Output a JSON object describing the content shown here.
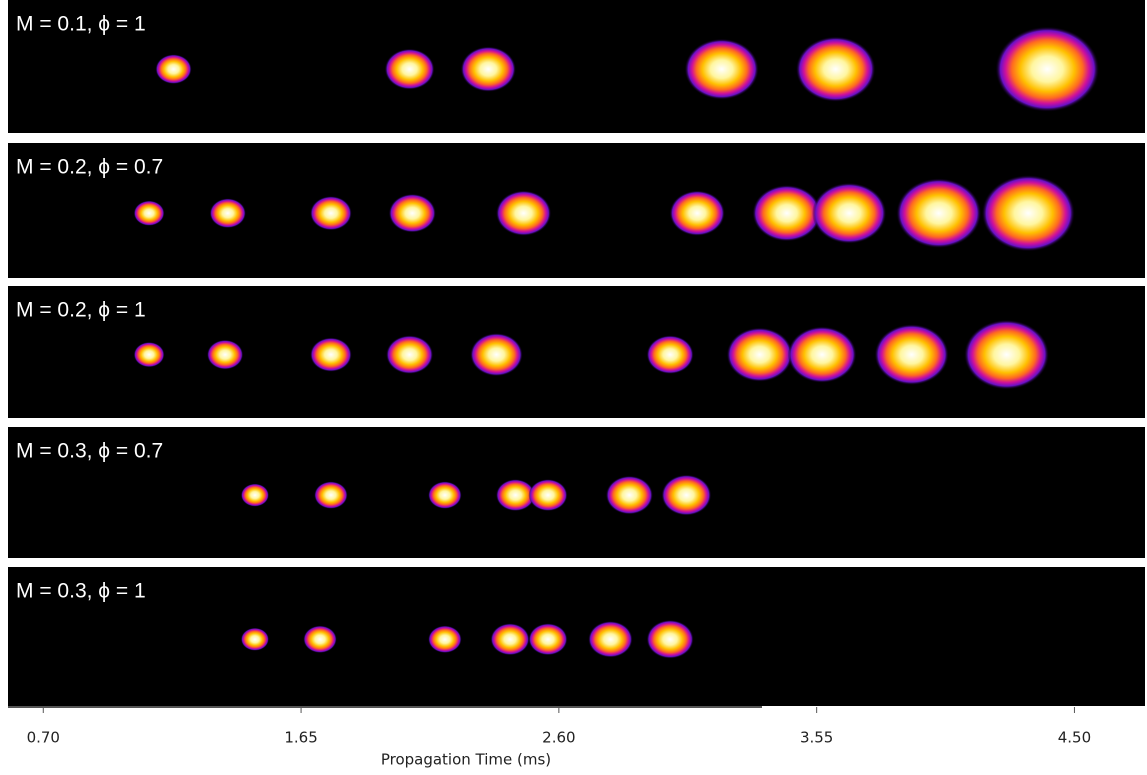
{
  "chart_data": {
    "type": "strip",
    "xlabel": "Propagation Time (ms)",
    "xlim": [
      0.57,
      4.76
    ],
    "xticks": [
      {
        "value": 0.7,
        "label": "0.70"
      },
      1.65,
      {
        "value": 2.6,
        "label": "2.60"
      },
      3.55,
      {
        "value": 4.5,
        "label": "4.50"
      }
    ],
    "panels": [
      {
        "title": "M = 0.1, ϕ = 1",
        "x": [
          1.18,
          2.05,
          2.34,
          3.2,
          3.62,
          4.4
        ],
        "size": [
          0.09,
          0.14,
          0.16,
          0.23,
          0.25,
          0.34
        ]
      },
      {
        "title": "M = 0.2, ϕ = 0.7",
        "x": [
          1.09,
          1.38,
          1.76,
          2.06,
          2.47,
          3.11,
          3.44,
          3.67,
          4.0,
          4.33
        ],
        "size": [
          0.07,
          0.09,
          0.11,
          0.13,
          0.16,
          0.16,
          0.21,
          0.23,
          0.27,
          0.3
        ]
      },
      {
        "title": "M = 0.2, ϕ = 1",
        "x": [
          1.09,
          1.37,
          1.76,
          2.05,
          2.37,
          3.01,
          3.34,
          3.57,
          3.9,
          4.25
        ],
        "size": [
          0.07,
          0.09,
          0.11,
          0.13,
          0.15,
          0.13,
          0.2,
          0.21,
          0.23,
          0.27
        ]
      },
      {
        "title": "M = 0.3, ϕ = 0.7",
        "x": [
          1.48,
          1.76,
          2.18,
          2.44,
          2.56,
          2.86,
          3.07
        ],
        "size": [
          0.06,
          0.08,
          0.08,
          0.1,
          0.1,
          0.13,
          0.14
        ]
      },
      {
        "title": "M = 0.3, ϕ = 1",
        "x": [
          1.48,
          1.72,
          2.18,
          2.42,
          2.56,
          2.79,
          3.01
        ],
        "size": [
          0.06,
          0.08,
          0.08,
          0.1,
          0.1,
          0.12,
          0.13
        ]
      }
    ]
  }
}
